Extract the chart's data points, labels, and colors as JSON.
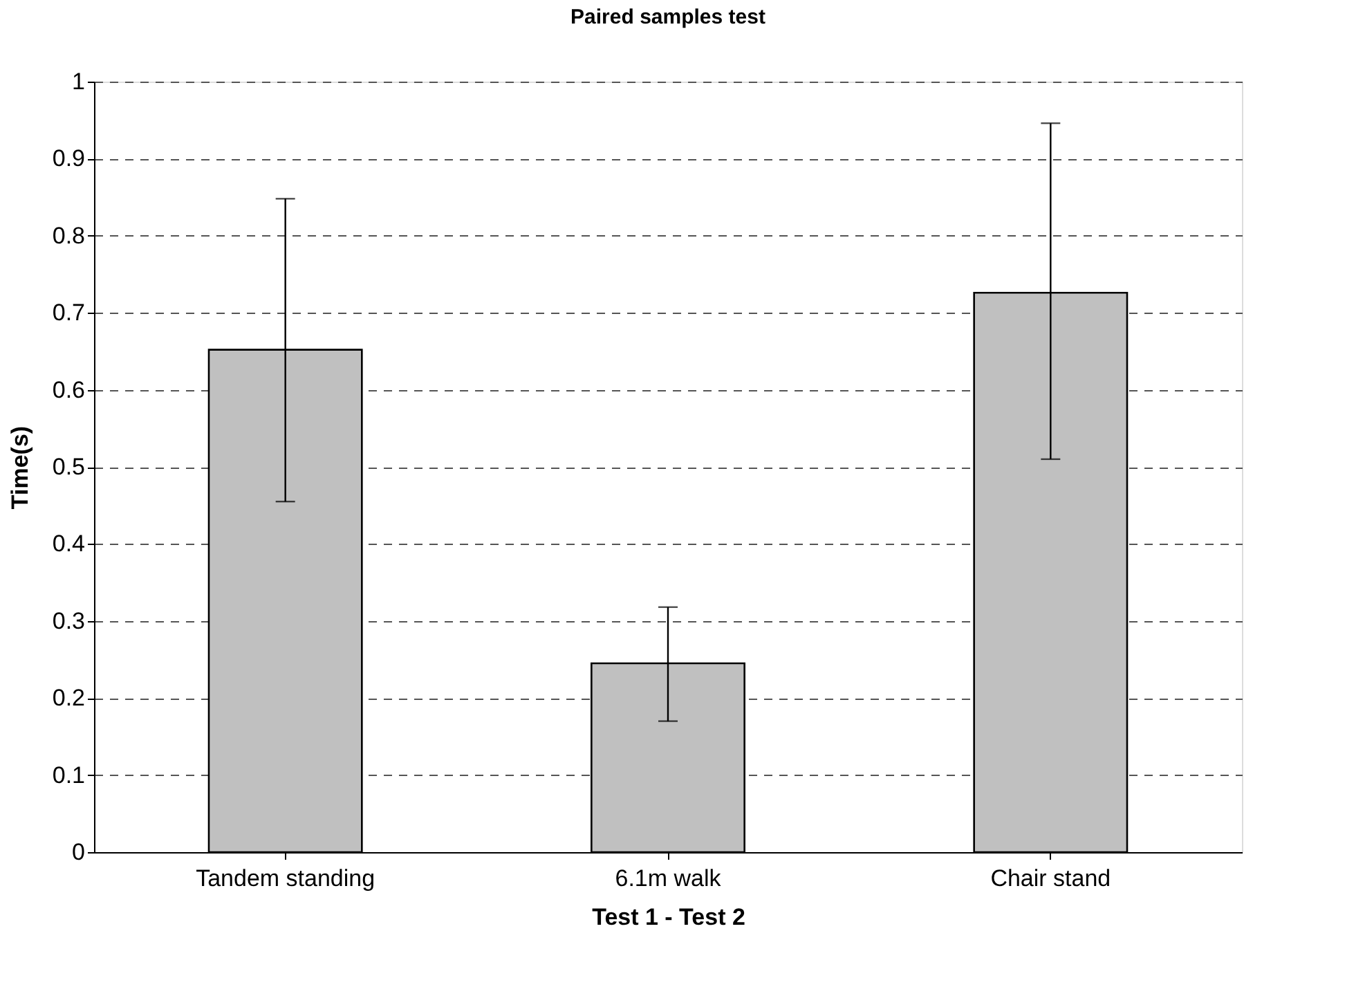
{
  "chart_data": {
    "type": "bar",
    "title": "Paired samples test",
    "xlabel": "Test 1 - Test 2",
    "ylabel": "Time(s)",
    "categories": [
      "Tandem standing",
      "6.1m walk",
      "Chair stand"
    ],
    "values": [
      0.652,
      0.245,
      0.726
    ],
    "errors": [
      [
        0.455,
        0.848
      ],
      [
        0.17,
        0.318
      ],
      [
        0.51,
        0.946
      ]
    ],
    "color": "#c0c0c0",
    "ylim": [
      0,
      1
    ],
    "yticks": [
      0,
      0.1,
      0.2,
      0.3,
      0.4,
      0.5,
      0.6,
      0.7,
      0.8,
      0.9,
      1
    ],
    "grid": "y"
  }
}
